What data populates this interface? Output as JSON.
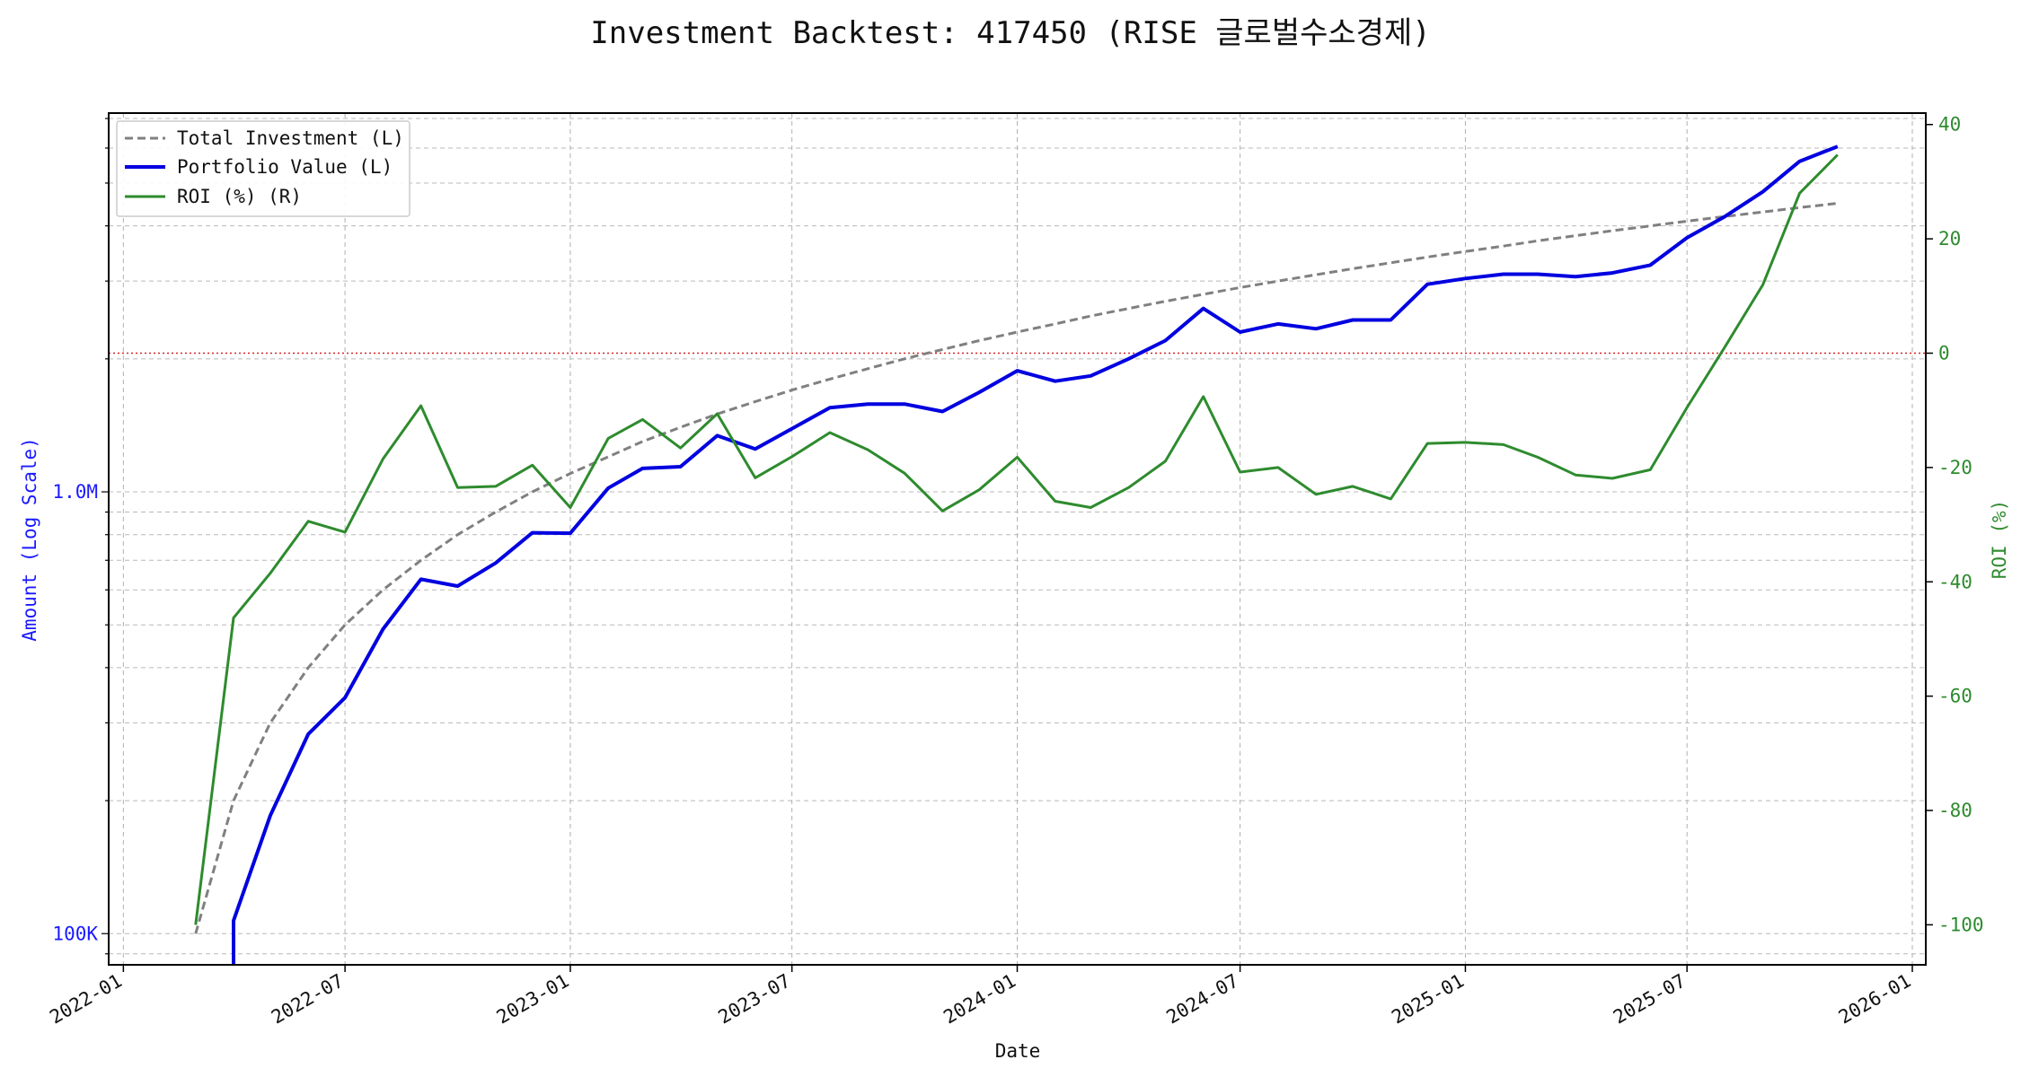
{
  "chart_data": {
    "type": "line",
    "title": "Investment Backtest: 417450 (RISE 글로벌수소경제)",
    "xlabel": "Date",
    "ylabel_left": "Amount (Log Scale)",
    "ylabel_right": "ROI (%)",
    "x_ticks": [
      "2022-01",
      "2022-07",
      "2023-01",
      "2023-07",
      "2024-01",
      "2024-07",
      "2025-01",
      "2025-07",
      "2026-01"
    ],
    "y_left_scale": "log",
    "y_left_ticks": [
      {
        "value": 100000,
        "label": "100K"
      },
      {
        "value": 1000000,
        "label": "1.0M"
      }
    ],
    "y_left_range": [
      85000,
      7200000
    ],
    "y_right_range": [
      -107,
      42
    ],
    "y_right_ticks": [
      40,
      20,
      0,
      -20,
      -40,
      -60,
      -80,
      -100
    ],
    "x_range": [
      "2021-12-20",
      "2026-01-12"
    ],
    "grid": true,
    "legend_position": "top-left",
    "zero_reference_line_right": 0,
    "colors": {
      "total_investment": "#808080",
      "portfolio_value": "#0000e0",
      "roi": "#2e8b2e",
      "zero_line": "#d62728",
      "left_axis": "#1a1aff",
      "right_axis": "#2e8b2e"
    },
    "series": [
      {
        "name": "Total Investment (L)",
        "axis": "left",
        "style": "dashed",
        "points": [
          [
            "2022-03-01",
            100000
          ],
          [
            "2022-04-01",
            200000
          ],
          [
            "2022-05-01",
            300000
          ],
          [
            "2022-06-01",
            400000
          ],
          [
            "2022-07-01",
            500000
          ],
          [
            "2022-08-01",
            600000
          ],
          [
            "2022-09-01",
            700000
          ],
          [
            "2022-10-01",
            800000
          ],
          [
            "2022-11-01",
            900000
          ],
          [
            "2022-12-01",
            1000000
          ],
          [
            "2023-01-01",
            1100000
          ],
          [
            "2023-02-01",
            1200000
          ],
          [
            "2023-03-01",
            1300000
          ],
          [
            "2023-04-01",
            1400000
          ],
          [
            "2023-05-01",
            1500000
          ],
          [
            "2023-06-01",
            1600000
          ],
          [
            "2023-07-01",
            1700000
          ],
          [
            "2023-08-01",
            1800000
          ],
          [
            "2023-09-01",
            1900000
          ],
          [
            "2023-10-01",
            2000000
          ],
          [
            "2023-11-01",
            2100000
          ],
          [
            "2023-12-01",
            2200000
          ],
          [
            "2024-01-01",
            2300000
          ],
          [
            "2024-02-01",
            2400000
          ],
          [
            "2024-03-01",
            2500000
          ],
          [
            "2024-04-01",
            2600000
          ],
          [
            "2024-05-01",
            2700000
          ],
          [
            "2024-06-01",
            2800000
          ],
          [
            "2024-07-01",
            2900000
          ],
          [
            "2024-08-01",
            3000000
          ],
          [
            "2024-09-01",
            3100000
          ],
          [
            "2024-10-01",
            3200000
          ],
          [
            "2024-11-01",
            3300000
          ],
          [
            "2024-12-01",
            3400000
          ],
          [
            "2025-01-01",
            3500000
          ],
          [
            "2025-02-01",
            3600000
          ],
          [
            "2025-03-01",
            3700000
          ],
          [
            "2025-04-01",
            3800000
          ],
          [
            "2025-05-01",
            3900000
          ],
          [
            "2025-06-01",
            4000000
          ],
          [
            "2025-07-01",
            4100000
          ],
          [
            "2025-08-01",
            4200000
          ],
          [
            "2025-09-01",
            4300000
          ],
          [
            "2025-10-01",
            4400000
          ],
          [
            "2025-11-01",
            4500000
          ]
        ]
      },
      {
        "name": "Portfolio Value (L)",
        "axis": "left",
        "style": "solid",
        "points": [
          [
            "2022-04-01",
            70000
          ],
          [
            "2022-04-01",
            107000
          ],
          [
            "2022-05-01",
            185000
          ],
          [
            "2022-06-01",
            283000
          ],
          [
            "2022-07-01",
            342000
          ],
          [
            "2022-08-01",
            489000
          ],
          [
            "2022-09-01",
            634000
          ],
          [
            "2022-10-01",
            612000
          ],
          [
            "2022-11-01",
            690000
          ],
          [
            "2022-12-01",
            808000
          ],
          [
            "2023-01-01",
            806000
          ],
          [
            "2023-02-01",
            1020000
          ],
          [
            "2023-03-01",
            1130000
          ],
          [
            "2023-04-01",
            1140000
          ],
          [
            "2023-05-01",
            1340000
          ],
          [
            "2023-06-01",
            1250000
          ],
          [
            "2023-07-01",
            1390000
          ],
          [
            "2023-08-01",
            1550000
          ],
          [
            "2023-09-01",
            1580000
          ],
          [
            "2023-10-01",
            1580000
          ],
          [
            "2023-11-01",
            1520000
          ],
          [
            "2023-12-01",
            1680000
          ],
          [
            "2024-01-01",
            1880000
          ],
          [
            "2024-02-01",
            1780000
          ],
          [
            "2024-03-01",
            1830000
          ],
          [
            "2024-04-01",
            2000000
          ],
          [
            "2024-05-01",
            2200000
          ],
          [
            "2024-06-01",
            2600000
          ],
          [
            "2024-07-01",
            2300000
          ],
          [
            "2024-08-01",
            2400000
          ],
          [
            "2024-09-01",
            2340000
          ],
          [
            "2024-10-01",
            2450000
          ],
          [
            "2024-11-01",
            2450000
          ],
          [
            "2024-12-01",
            2950000
          ],
          [
            "2025-01-01",
            3040000
          ],
          [
            "2025-02-01",
            3110000
          ],
          [
            "2025-03-01",
            3110000
          ],
          [
            "2025-04-01",
            3070000
          ],
          [
            "2025-05-01",
            3130000
          ],
          [
            "2025-06-01",
            3260000
          ],
          [
            "2025-07-01",
            3760000
          ],
          [
            "2025-08-01",
            4200000
          ],
          [
            "2025-09-01",
            4780000
          ],
          [
            "2025-10-01",
            5600000
          ],
          [
            "2025-11-01",
            6050000
          ]
        ]
      },
      {
        "name": "ROI (%) (R)",
        "axis": "right",
        "style": "solid",
        "points": [
          [
            "2022-03-01",
            -100
          ],
          [
            "2022-04-01",
            -46.3
          ],
          [
            "2022-05-01",
            -38.5
          ],
          [
            "2022-06-01",
            -29.4
          ],
          [
            "2022-07-01",
            -31.3
          ],
          [
            "2022-08-01",
            -18.5
          ],
          [
            "2022-09-01",
            -9.2
          ],
          [
            "2022-10-01",
            -23.5
          ],
          [
            "2022-11-01",
            -23.3
          ],
          [
            "2022-12-01",
            -19.6
          ],
          [
            "2023-01-01",
            -27.0
          ],
          [
            "2023-02-01",
            -14.9
          ],
          [
            "2023-03-01",
            -11.6
          ],
          [
            "2023-04-01",
            -16.6
          ],
          [
            "2023-05-01",
            -10.6
          ],
          [
            "2023-06-01",
            -21.8
          ],
          [
            "2023-07-01",
            -18.1
          ],
          [
            "2023-08-01",
            -13.9
          ],
          [
            "2023-09-01",
            -16.9
          ],
          [
            "2023-10-01",
            -21.0
          ],
          [
            "2023-11-01",
            -27.6
          ],
          [
            "2023-12-01",
            -23.9
          ],
          [
            "2024-01-01",
            -18.2
          ],
          [
            "2024-02-01",
            -25.9
          ],
          [
            "2024-03-01",
            -27.0
          ],
          [
            "2024-04-01",
            -23.5
          ],
          [
            "2024-05-01",
            -18.9
          ],
          [
            "2024-06-01",
            -7.6
          ],
          [
            "2024-07-01",
            -20.8
          ],
          [
            "2024-08-01",
            -20.0
          ],
          [
            "2024-09-01",
            -24.7
          ],
          [
            "2024-10-01",
            -23.3
          ],
          [
            "2024-11-01",
            -25.5
          ],
          [
            "2024-12-01",
            -15.8
          ],
          [
            "2025-01-01",
            -15.6
          ],
          [
            "2025-02-01",
            -16.0
          ],
          [
            "2025-03-01",
            -18.2
          ],
          [
            "2025-04-01",
            -21.3
          ],
          [
            "2025-05-01",
            -21.9
          ],
          [
            "2025-06-01",
            -20.4
          ],
          [
            "2025-07-01",
            -9.5
          ],
          [
            "2025-08-01",
            1.1
          ],
          [
            "2025-09-01",
            12.0
          ],
          [
            "2025-10-01",
            28.0
          ],
          [
            "2025-11-01",
            34.7
          ]
        ]
      }
    ]
  }
}
